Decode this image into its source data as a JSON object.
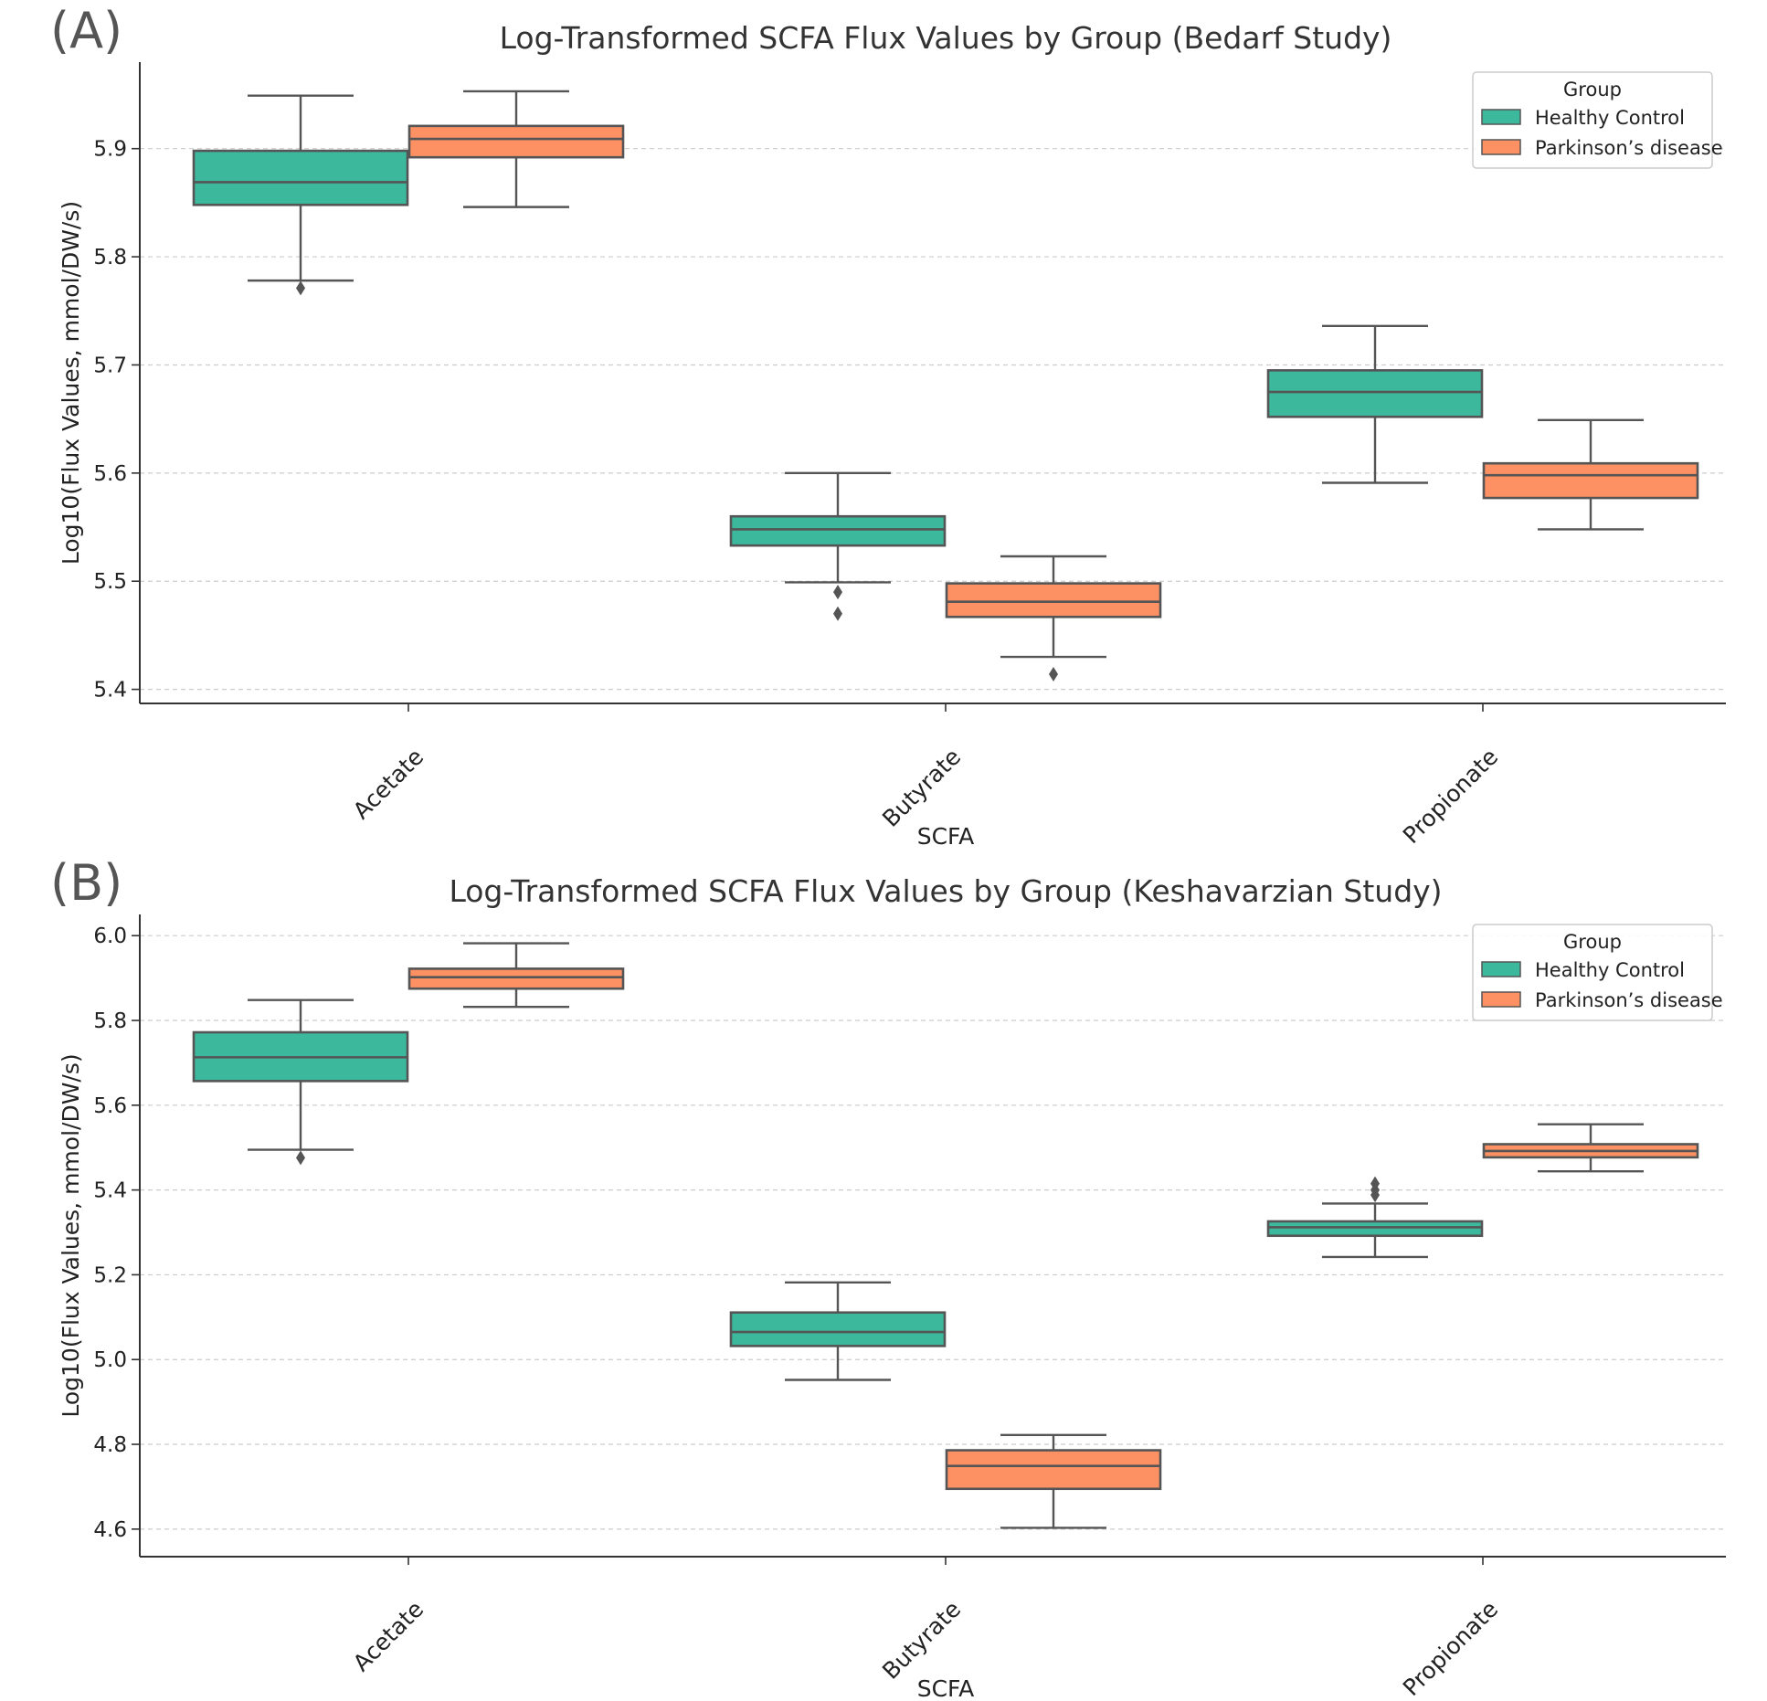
{
  "colors": {
    "healthy": "#3CB89D",
    "parkinsons": "#FD9164",
    "line": "#555555",
    "grid": "#CCCCCC",
    "axis": "#333333"
  },
  "legend": {
    "title": "Group",
    "entries": [
      "Healthy Control",
      "Parkinson’s disease"
    ]
  },
  "chart_data": [
    {
      "type": "boxplot",
      "panel_label": "(A)",
      "title": "Log-Transformed SCFA Flux Values by Group (Bedarf Study)",
      "xlabel": "SCFA",
      "ylabel": "Log10(Flux Values, mmol/DW/s)",
      "ylim": [
        5.387,
        5.98
      ],
      "yticks": [
        5.4,
        5.5,
        5.6,
        5.7,
        5.8,
        5.9
      ],
      "yticklabels": [
        "5.4",
        "5.5",
        "5.6",
        "5.7",
        "5.8",
        "5.9"
      ],
      "categories": [
        "Acetate",
        "Butyrate",
        "Propionate"
      ],
      "legend_position": "top-right",
      "grid": true,
      "series": [
        {
          "name": "Healthy Control",
          "boxes": [
            {
              "whisker_low": 5.778,
              "q1": 5.848,
              "median": 5.869,
              "q3": 5.898,
              "whisker_high": 5.949,
              "outliers": [
                5.771
              ]
            },
            {
              "whisker_low": 5.499,
              "q1": 5.533,
              "median": 5.548,
              "q3": 5.56,
              "whisker_high": 5.6,
              "outliers": [
                5.49,
                5.47
              ]
            },
            {
              "whisker_low": 5.591,
              "q1": 5.652,
              "median": 5.675,
              "q3": 5.695,
              "whisker_high": 5.736,
              "outliers": []
            }
          ]
        },
        {
          "name": "Parkinson’s disease",
          "boxes": [
            {
              "whisker_low": 5.846,
              "q1": 5.892,
              "median": 5.909,
              "q3": 5.921,
              "whisker_high": 5.953,
              "outliers": []
            },
            {
              "whisker_low": 5.43,
              "q1": 5.467,
              "median": 5.481,
              "q3": 5.498,
              "whisker_high": 5.523,
              "outliers": [
                5.414
              ]
            },
            {
              "whisker_low": 5.548,
              "q1": 5.577,
              "median": 5.598,
              "q3": 5.609,
              "whisker_high": 5.649,
              "outliers": []
            }
          ]
        }
      ]
    },
    {
      "type": "boxplot",
      "panel_label": "(B)",
      "title": "Log-Transformed SCFA Flux Values by Group (Keshavarzian Study)",
      "xlabel": "SCFA",
      "ylabel": "Log10(Flux Values, mmol/DW/s)",
      "ylim": [
        4.535,
        6.05
      ],
      "yticks": [
        4.6,
        4.8,
        5.0,
        5.2,
        5.4,
        5.6,
        5.8,
        6.0
      ],
      "yticklabels": [
        "4.6",
        "4.8",
        "5.0",
        "5.2",
        "5.4",
        "5.6",
        "5.8",
        "6.0"
      ],
      "categories": [
        "Acetate",
        "Butyrate",
        "Propionate"
      ],
      "legend_position": "top-right",
      "grid": true,
      "series": [
        {
          "name": "Healthy Control",
          "boxes": [
            {
              "whisker_low": 5.495,
              "q1": 5.657,
              "median": 5.713,
              "q3": 5.772,
              "whisker_high": 5.848,
              "outliers": [
                5.476
              ]
            },
            {
              "whisker_low": 4.952,
              "q1": 5.032,
              "median": 5.065,
              "q3": 5.111,
              "whisker_high": 5.182,
              "outliers": []
            },
            {
              "whisker_low": 5.242,
              "q1": 5.292,
              "median": 5.312,
              "q3": 5.326,
              "whisker_high": 5.368,
              "outliers": [
                5.388,
                5.4,
                5.415
              ]
            }
          ]
        },
        {
          "name": "Parkinson’s disease",
          "boxes": [
            {
              "whisker_low": 5.832,
              "q1": 5.875,
              "median": 5.902,
              "q3": 5.922,
              "whisker_high": 5.982,
              "outliers": []
            },
            {
              "whisker_low": 4.603,
              "q1": 4.695,
              "median": 4.749,
              "q3": 4.786,
              "whisker_high": 4.822,
              "outliers": []
            },
            {
              "whisker_low": 5.444,
              "q1": 5.477,
              "median": 5.492,
              "q3": 5.508,
              "whisker_high": 5.555,
              "outliers": []
            }
          ]
        }
      ]
    }
  ]
}
